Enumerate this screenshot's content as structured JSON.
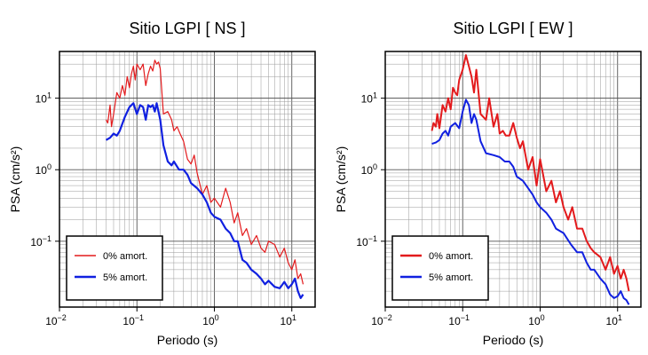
{
  "chart_data": [
    {
      "type": "line",
      "title": "Sitio LGPI [ NS ]",
      "xlabel": "Periodo (s)",
      "ylabel": "PSA (cm/s²)",
      "xscale": "log",
      "yscale": "log",
      "xlim": [
        0.01,
        20
      ],
      "ylim": [
        0.012,
        45
      ],
      "xticks": [
        {
          "base": "10",
          "exp": "−2"
        },
        {
          "base": "10",
          "exp": "−1"
        },
        {
          "base": "10",
          "exp": "0"
        },
        {
          "base": "10",
          "exp": "1"
        }
      ],
      "yticks": [
        {
          "base": "10",
          "exp": "−1"
        },
        {
          "base": "10",
          "exp": "0"
        },
        {
          "base": "10",
          "exp": "1"
        }
      ],
      "grid": true,
      "legend_position": "bottom-left",
      "series": [
        {
          "name": "0% amort.",
          "color": "#e31a1c",
          "x": [
            0.04,
            0.042,
            0.045,
            0.047,
            0.05,
            0.055,
            0.06,
            0.065,
            0.07,
            0.075,
            0.08,
            0.085,
            0.09,
            0.095,
            0.1,
            0.11,
            0.12,
            0.13,
            0.14,
            0.15,
            0.16,
            0.17,
            0.18,
            0.19,
            0.2,
            0.22,
            0.25,
            0.28,
            0.3,
            0.33,
            0.36,
            0.4,
            0.45,
            0.5,
            0.55,
            0.6,
            0.7,
            0.8,
            0.9,
            1.0,
            1.2,
            1.4,
            1.6,
            1.8,
            2.0,
            2.3,
            2.6,
            3.0,
            3.5,
            4.0,
            4.5,
            5.0,
            6.0,
            7.0,
            8.0,
            9.0,
            10.0,
            11.0,
            12.0,
            13.0,
            14.0
          ],
          "y": [
            5,
            4.5,
            8,
            4,
            6,
            12,
            10,
            15,
            11,
            20,
            14,
            22,
            28,
            18,
            30,
            25,
            30,
            15,
            22,
            28,
            24,
            34,
            30,
            32,
            26,
            6,
            6.5,
            5,
            3.5,
            4,
            3.2,
            2.5,
            1.4,
            1.2,
            1.6,
            0.9,
            0.45,
            0.6,
            0.35,
            0.4,
            0.3,
            0.55,
            0.35,
            0.18,
            0.25,
            0.12,
            0.15,
            0.09,
            0.12,
            0.08,
            0.07,
            0.1,
            0.09,
            0.06,
            0.08,
            0.05,
            0.04,
            0.055,
            0.03,
            0.035,
            0.025
          ]
        },
        {
          "name": "5% amort.",
          "color": "#1020e0",
          "x": [
            0.04,
            0.045,
            0.05,
            0.055,
            0.06,
            0.07,
            0.08,
            0.09,
            0.1,
            0.11,
            0.12,
            0.13,
            0.14,
            0.15,
            0.16,
            0.17,
            0.18,
            0.2,
            0.22,
            0.25,
            0.28,
            0.3,
            0.35,
            0.4,
            0.45,
            0.5,
            0.6,
            0.7,
            0.8,
            0.9,
            1.0,
            1.2,
            1.4,
            1.6,
            1.8,
            2.0,
            2.3,
            2.6,
            3.0,
            3.5,
            4.0,
            4.5,
            5.0,
            6.0,
            7.0,
            8.0,
            9.0,
            10.0,
            11.0,
            12.0,
            13.0,
            14.0
          ],
          "y": [
            2.6,
            2.8,
            3.2,
            3.0,
            3.5,
            5.5,
            7.5,
            8.5,
            6.0,
            8.0,
            7.5,
            5.0,
            8.0,
            7.5,
            8.0,
            6.5,
            8.5,
            5.0,
            2.2,
            1.3,
            1.15,
            1.3,
            1.0,
            1.0,
            0.85,
            0.65,
            0.55,
            0.45,
            0.35,
            0.25,
            0.22,
            0.2,
            0.15,
            0.13,
            0.1,
            0.1,
            0.055,
            0.05,
            0.04,
            0.035,
            0.03,
            0.025,
            0.028,
            0.023,
            0.022,
            0.027,
            0.022,
            0.025,
            0.03,
            0.02,
            0.016,
            0.018
          ]
        }
      ]
    },
    {
      "type": "line",
      "title": "Sitio LGPI [ EW ]",
      "xlabel": "Periodo (s)",
      "ylabel": "PSA (cm/s²)",
      "xscale": "log",
      "yscale": "log",
      "xlim": [
        0.01,
        20
      ],
      "ylim": [
        0.012,
        45
      ],
      "xticks": [
        {
          "base": "10",
          "exp": "−2"
        },
        {
          "base": "10",
          "exp": "−1"
        },
        {
          "base": "10",
          "exp": "0"
        },
        {
          "base": "10",
          "exp": "1"
        }
      ],
      "yticks": [
        {
          "base": "10",
          "exp": "−1"
        },
        {
          "base": "10",
          "exp": "0"
        },
        {
          "base": "10",
          "exp": "1"
        }
      ],
      "grid": true,
      "legend_position": "bottom-left",
      "series": [
        {
          "name": "0% amort.",
          "color": "#e31a1c",
          "x": [
            0.04,
            0.042,
            0.045,
            0.047,
            0.05,
            0.055,
            0.06,
            0.065,
            0.07,
            0.075,
            0.08,
            0.085,
            0.09,
            0.1,
            0.11,
            0.12,
            0.13,
            0.14,
            0.15,
            0.17,
            0.2,
            0.22,
            0.25,
            0.28,
            0.3,
            0.33,
            0.36,
            0.4,
            0.45,
            0.5,
            0.55,
            0.6,
            0.7,
            0.8,
            0.9,
            1.0,
            1.2,
            1.4,
            1.6,
            1.8,
            2.0,
            2.3,
            2.6,
            3.0,
            3.5,
            4.0,
            4.5,
            5.0,
            6.0,
            7.0,
            8.0,
            9.0,
            10.0,
            11.0,
            12.0,
            13.0,
            14.0
          ],
          "y": [
            3.5,
            4.5,
            4.0,
            6.0,
            3.8,
            8.0,
            6.5,
            10.0,
            7.0,
            14.0,
            12.0,
            11.0,
            18.0,
            25.0,
            40.0,
            28.0,
            20.0,
            12.0,
            25.0,
            6.0,
            5.0,
            10.0,
            4.0,
            6.0,
            3.2,
            3.5,
            3.0,
            3.0,
            4.5,
            2.8,
            2.0,
            2.5,
            1.0,
            1.5,
            0.6,
            1.4,
            0.5,
            0.7,
            0.35,
            0.5,
            0.3,
            0.2,
            0.3,
            0.15,
            0.15,
            0.1,
            0.08,
            0.07,
            0.06,
            0.04,
            0.06,
            0.035,
            0.045,
            0.03,
            0.04,
            0.03,
            0.02
          ]
        },
        {
          "name": "5% amort.",
          "color": "#1020e0",
          "x": [
            0.04,
            0.045,
            0.05,
            0.055,
            0.06,
            0.065,
            0.07,
            0.08,
            0.09,
            0.1,
            0.11,
            0.12,
            0.13,
            0.14,
            0.15,
            0.17,
            0.2,
            0.25,
            0.3,
            0.35,
            0.4,
            0.45,
            0.5,
            0.6,
            0.7,
            0.8,
            0.9,
            1.0,
            1.2,
            1.4,
            1.6,
            2.0,
            2.5,
            3.0,
            3.5,
            4.0,
            4.5,
            5.0,
            6.0,
            7.0,
            8.0,
            9.0,
            10.0,
            11.0,
            12.0,
            13.0,
            14.0
          ],
          "y": [
            2.3,
            2.4,
            2.6,
            3.2,
            3.5,
            3.0,
            4.0,
            4.5,
            3.8,
            6.5,
            9.5,
            8.0,
            4.5,
            6.0,
            5.0,
            2.5,
            1.7,
            1.6,
            1.5,
            1.3,
            1.3,
            1.1,
            0.8,
            0.7,
            0.55,
            0.45,
            0.35,
            0.3,
            0.25,
            0.2,
            0.15,
            0.13,
            0.09,
            0.07,
            0.07,
            0.05,
            0.04,
            0.04,
            0.03,
            0.025,
            0.018,
            0.016,
            0.017,
            0.02,
            0.016,
            0.015,
            0.013
          ]
        }
      ]
    }
  ]
}
